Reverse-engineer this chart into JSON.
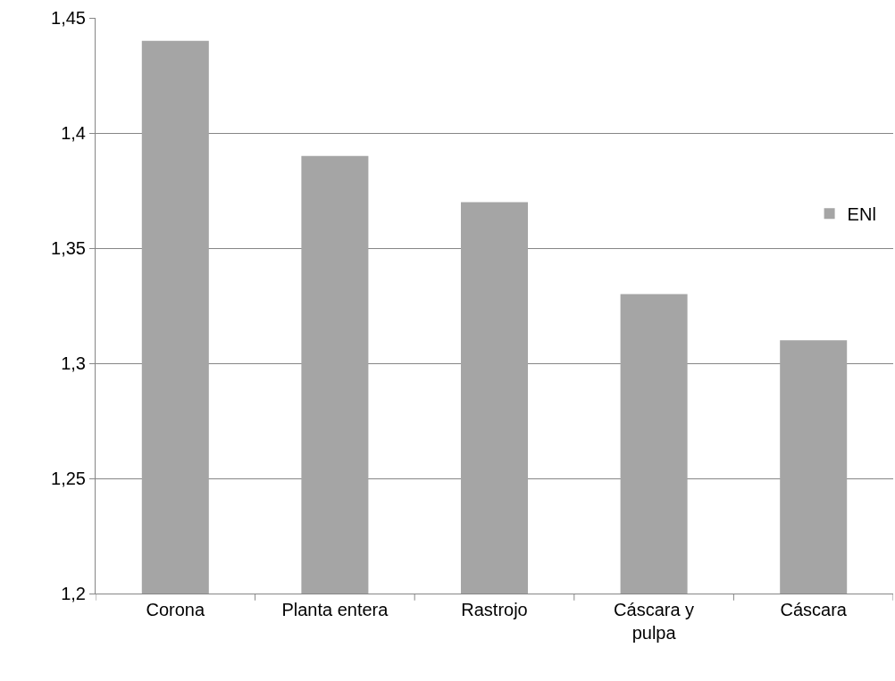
{
  "chart_data": {
    "type": "bar",
    "categories": [
      "Corona",
      "Planta entera",
      "Rastrojo",
      "Cáscara y pulpa",
      "Cáscara"
    ],
    "series": [
      {
        "name": "ENl",
        "color": "#a5a5a5",
        "values": [
          1.44,
          1.39,
          1.37,
          1.33,
          1.31
        ]
      }
    ],
    "ylim": [
      1.2,
      1.45
    ],
    "yticks": [
      {
        "value": 1.2,
        "label": "1,2"
      },
      {
        "value": 1.25,
        "label": "1,25"
      },
      {
        "value": 1.3,
        "label": "1,3"
      },
      {
        "value": 1.35,
        "label": "1,35"
      },
      {
        "value": 1.4,
        "label": "1,4"
      },
      {
        "value": 1.45,
        "label": "1,45"
      }
    ],
    "grid": "y",
    "legend": "right"
  }
}
